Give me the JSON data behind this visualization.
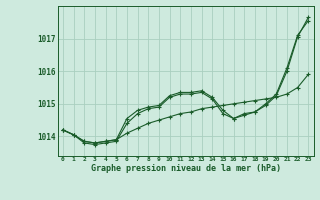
{
  "title": "Graphe pression niveau de la mer (hPa)",
  "background_color": "#ceeade",
  "grid_color": "#aacfbf",
  "line_color": "#1a5c2a",
  "x_labels": [
    "0",
    "1",
    "2",
    "3",
    "4",
    "5",
    "6",
    "7",
    "8",
    "9",
    "10",
    "11",
    "12",
    "13",
    "14",
    "15",
    "16",
    "17",
    "18",
    "19",
    "20",
    "21",
    "22",
    "23"
  ],
  "ylim": [
    1013.4,
    1018.0
  ],
  "yticks": [
    1014,
    1015,
    1016,
    1017
  ],
  "series1": [
    1014.2,
    1014.05,
    1013.85,
    1013.8,
    1013.85,
    1013.9,
    1014.55,
    1014.8,
    1014.9,
    1014.95,
    1015.25,
    1015.35,
    1015.35,
    1015.4,
    1015.2,
    1014.8,
    1014.55,
    1014.7,
    1014.75,
    1015.0,
    1015.3,
    1016.1,
    1017.1,
    1017.55
  ],
  "series2": [
    1014.2,
    1014.05,
    1013.85,
    1013.8,
    1013.85,
    1013.9,
    1014.1,
    1014.25,
    1014.4,
    1014.5,
    1014.6,
    1014.7,
    1014.75,
    1014.85,
    1014.9,
    1014.95,
    1015.0,
    1015.05,
    1015.1,
    1015.15,
    1015.2,
    1015.3,
    1015.5,
    1015.9
  ],
  "series3": [
    1014.2,
    1014.05,
    1013.8,
    1013.75,
    1013.8,
    1013.85,
    1014.4,
    1014.7,
    1014.85,
    1014.9,
    1015.2,
    1015.3,
    1015.3,
    1015.35,
    1015.15,
    1014.7,
    1014.55,
    1014.65,
    1014.75,
    1014.95,
    1015.25,
    1016.0,
    1017.05,
    1017.65
  ]
}
